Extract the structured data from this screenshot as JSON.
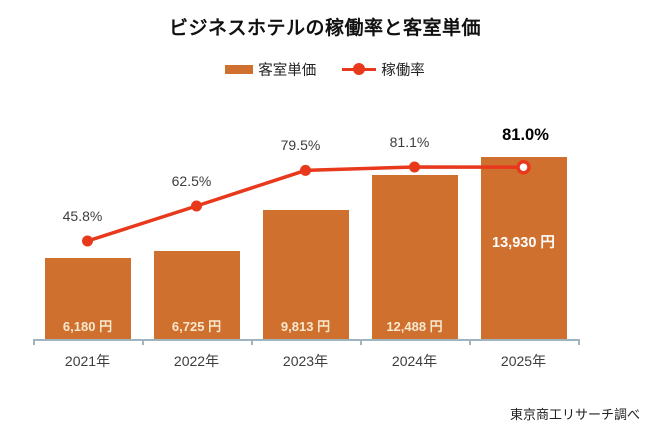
{
  "chart_data": {
    "type": "bar",
    "subtype": "bar-line-combo",
    "title": "ビジネスホテルの稼働率と客室単価",
    "source": "東京商工リサーチ調べ",
    "categories": [
      "2021年",
      "2022年",
      "2023年",
      "2024年",
      "2025年"
    ],
    "series": [
      {
        "name": "客室単価",
        "type": "bar",
        "unit": "円",
        "values": [
          6180,
          6725,
          9813,
          12488,
          13930
        ],
        "labels": [
          "6,180 円",
          "6,725 円",
          "9,813 円",
          "12,488 円",
          "13,930 円"
        ],
        "color": "#d0702e"
      },
      {
        "name": "稼働率",
        "type": "line",
        "unit": "%",
        "values": [
          45.8,
          62.5,
          79.5,
          81.1,
          81.0
        ],
        "labels": [
          "45.8%",
          "62.5%",
          "79.5%",
          "81.1%",
          "81.0%"
        ],
        "color": "#e8391c"
      }
    ],
    "emphasized_index": 4,
    "ylim_bar": [
      0,
      15600
    ],
    "ylim_line": [
      0,
      100
    ],
    "legend_position": "top-center",
    "grid": false,
    "y_axis_visible": false
  },
  "legend": {
    "bar_label": "客室単価",
    "line_label": "稼働率"
  },
  "colors": {
    "bar": "#d0702e",
    "line": "#e8391c",
    "axis": "#a0b4bf",
    "bar_value_text": "#f8e8cd",
    "emphasized_text": "#000000"
  }
}
